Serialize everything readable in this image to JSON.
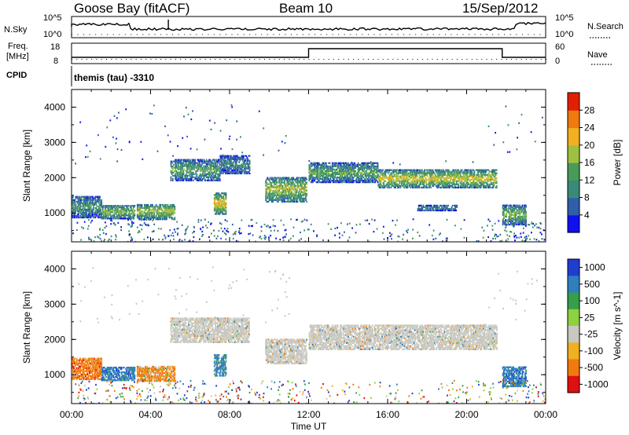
{
  "header": {
    "station": "Goose Bay (fitACF)",
    "beam": "Beam 10",
    "date": "15/Sep/2012"
  },
  "noise_panel": {
    "left_label": "N.Sky",
    "right_label": "N.Search",
    "left_ticks": [
      "10^5",
      "10^0"
    ],
    "right_ticks": [
      "10^5",
      "10^0"
    ]
  },
  "freq_panel": {
    "left_label_top": "Freq.",
    "left_label_bottom": "[MHz]",
    "right_label": "Nave",
    "left_ticks": [
      "18",
      "8"
    ],
    "right_ticks": [
      "60",
      "0"
    ]
  },
  "cpid": {
    "label": "CPID",
    "program": "themis (tau) -3310"
  },
  "colors": {
    "power_scale": [
      "#1010ee",
      "#2f5fa8",
      "#3a8a78",
      "#4a9a58",
      "#9ec040",
      "#f0b020",
      "#f07a10",
      "#e02000"
    ],
    "velocity_scale": [
      "#1f3ecf",
      "#2f7fbf",
      "#34a04a",
      "#8fd040",
      "#c8c8c0",
      "#f0b020",
      "#f07a10",
      "#e01010"
    ],
    "velocity_grey": "#c8c8c0"
  },
  "chart_data": [
    {
      "type": "heatmap",
      "name": "power",
      "xlabel": "",
      "ylabel": "Slant Range [km]",
      "xlim": [
        0,
        24
      ],
      "ylim": [
        180,
        4500
      ],
      "yticks": [
        "1000",
        "2000",
        "3000",
        "4000"
      ],
      "colorbar_label": "Power [dB]",
      "colorbar_ticks": [
        "4",
        "8",
        "12",
        "16",
        "20",
        "24",
        "28"
      ],
      "color_range": [
        0,
        32
      ],
      "echo_bands": [
        {
          "t": [
            0.0,
            1.5
          ],
          "range": [
            850,
            1450
          ],
          "power": 12
        },
        {
          "t": [
            1.5,
            3.2
          ],
          "range": [
            820,
            1200
          ],
          "power": 16
        },
        {
          "t": [
            3.3,
            5.2
          ],
          "range": [
            800,
            1250
          ],
          "power": 18
        },
        {
          "t": [
            5.0,
            7.5
          ],
          "range": [
            1900,
            2500
          ],
          "power": 14
        },
        {
          "t": [
            7.5,
            9.0
          ],
          "range": [
            2100,
            2600
          ],
          "power": 10
        },
        {
          "t": [
            7.2,
            7.8
          ],
          "range": [
            950,
            1550
          ],
          "power": 22
        },
        {
          "t": [
            9.8,
            11.9
          ],
          "range": [
            1300,
            2000
          ],
          "power": 18
        },
        {
          "t": [
            12.0,
            15.5
          ],
          "range": [
            1850,
            2400
          ],
          "power": 14
        },
        {
          "t": [
            15.5,
            21.5
          ],
          "range": [
            1700,
            2200
          ],
          "power": 20
        },
        {
          "t": [
            17.5,
            19.5
          ],
          "range": [
            1050,
            1200
          ],
          "power": 10
        },
        {
          "t": [
            21.8,
            23.0
          ],
          "range": [
            650,
            1200
          ],
          "power": 16
        }
      ]
    },
    {
      "type": "heatmap",
      "name": "velocity",
      "xlabel": "Time UT",
      "ylabel": "Slant Range [km]",
      "xlim": [
        0,
        24
      ],
      "ylim": [
        180,
        4500
      ],
      "xticks": [
        "00:00",
        "04:00",
        "08:00",
        "12:00",
        "16:00",
        "20:00",
        "00:00"
      ],
      "yticks": [
        "1000",
        "2000",
        "3000",
        "4000"
      ],
      "colorbar_label": "Velocity [m s^-1]",
      "colorbar_ticks": [
        "1000",
        "500",
        "100",
        "25",
        "-25",
        "-100",
        "-500",
        "-1000"
      ],
      "echo_bands": [
        {
          "t": [
            0.0,
            1.5
          ],
          "range": [
            850,
            1450
          ],
          "velocity": -300
        },
        {
          "t": [
            1.5,
            3.2
          ],
          "range": [
            820,
            1200
          ],
          "velocity": 300
        },
        {
          "t": [
            3.3,
            5.2
          ],
          "range": [
            800,
            1250
          ],
          "velocity": -200
        },
        {
          "t": [
            5.0,
            9.0
          ],
          "range": [
            1900,
            2600
          ],
          "velocity": 0
        },
        {
          "t": [
            7.2,
            7.8
          ],
          "range": [
            950,
            1550
          ],
          "velocity": 200
        },
        {
          "t": [
            9.8,
            11.9
          ],
          "range": [
            1300,
            2000
          ],
          "velocity": 0
        },
        {
          "t": [
            12.0,
            21.5
          ],
          "range": [
            1700,
            2400
          ],
          "velocity": 0
        },
        {
          "t": [
            21.8,
            23.0
          ],
          "range": [
            650,
            1200
          ],
          "velocity": 300
        }
      ]
    }
  ]
}
